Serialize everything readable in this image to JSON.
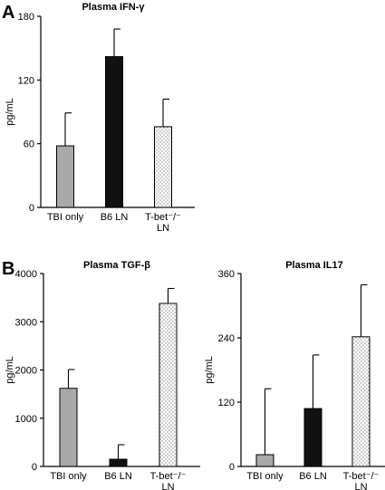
{
  "panels": {
    "A": "A",
    "B": "B"
  },
  "chart_data": [
    {
      "type": "bar",
      "panel": "A",
      "title": "Plasma IFN-γ",
      "ylabel": "pg/mL",
      "xlabel": "",
      "ylim": [
        0,
        180
      ],
      "yticks": [
        "0",
        "60",
        "120",
        "180"
      ],
      "categories": [
        "TBI only",
        "B6 LN",
        "T-bet⁻/⁻ LN"
      ],
      "category_lines": [
        [
          "TBI only"
        ],
        [
          "B6 LN"
        ],
        [
          "T-bet⁻/⁻",
          "LN"
        ]
      ],
      "values": [
        58,
        142,
        76
      ],
      "errors": [
        31,
        26,
        26
      ],
      "fills": [
        "gray",
        "black",
        "dotted"
      ],
      "grid": false,
      "legend": "none"
    },
    {
      "type": "bar",
      "panel": "B",
      "title": "Plasma TGF-β",
      "ylabel": "pg/mL",
      "xlabel": "",
      "ylim": [
        0,
        4000
      ],
      "yticks": [
        "0",
        "1000",
        "2000",
        "3000",
        "4000"
      ],
      "categories": [
        "TBI only",
        "B6 LN",
        "T-bet⁻/⁻ LN"
      ],
      "category_lines": [
        [
          "TBI only"
        ],
        [
          "B6 LN"
        ],
        [
          "T-bet⁻/⁻",
          "LN"
        ]
      ],
      "values": [
        1620,
        150,
        3380
      ],
      "errors": [
        390,
        300,
        310
      ],
      "fills": [
        "gray",
        "black",
        "dotted"
      ],
      "grid": false,
      "legend": "none"
    },
    {
      "type": "bar",
      "panel": "",
      "title": "Plasma IL17",
      "ylabel": "pg/mL",
      "xlabel": "",
      "ylim": [
        0,
        360
      ],
      "yticks": [
        "0",
        "120",
        "240",
        "360"
      ],
      "categories": [
        "TBI only",
        "B6 LN",
        "T-bet⁻/⁻ LN"
      ],
      "category_lines": [
        [
          "TBI only"
        ],
        [
          "B6 LN"
        ],
        [
          "T-bet⁻/⁻",
          "LN"
        ]
      ],
      "values": [
        22,
        108,
        242
      ],
      "errors": [
        123,
        100,
        97
      ],
      "fills": [
        "gray",
        "black",
        "dotted"
      ],
      "grid": false,
      "legend": "none"
    }
  ],
  "colors": {
    "gray": "#a9a9a9",
    "black": "#111111",
    "dotted_bg": "#ffffff",
    "dotted_dot": "#555555",
    "axis": "#000000"
  }
}
